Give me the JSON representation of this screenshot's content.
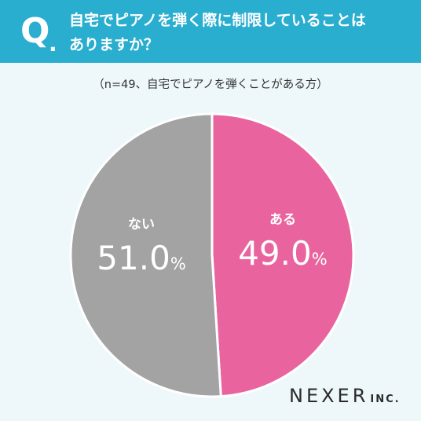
{
  "question": {
    "mark": "Q",
    "dot": ".",
    "line1": "自宅でピアノを弾く際に制限していることは",
    "line2": "ありますか？"
  },
  "subtitle": "（n=49、自宅でピアノを弾くことがある方）",
  "chart_data": {
    "type": "pie",
    "slices": [
      {
        "label": "ある",
        "value": 49.0,
        "display": "49.0",
        "unit": "%",
        "color": "#e9649e"
      },
      {
        "label": "ない",
        "value": 51.0,
        "display": "51.0",
        "unit": "%",
        "color": "#a3a3a3"
      }
    ],
    "start": "12 o'clock",
    "direction": "clockwise",
    "separator_color": "#ffffff"
  },
  "logo": {
    "main": "NEXER",
    "sub": "INC."
  },
  "colors": {
    "header_bg": "#2aaed0",
    "page_bg": "#eef8fb"
  }
}
